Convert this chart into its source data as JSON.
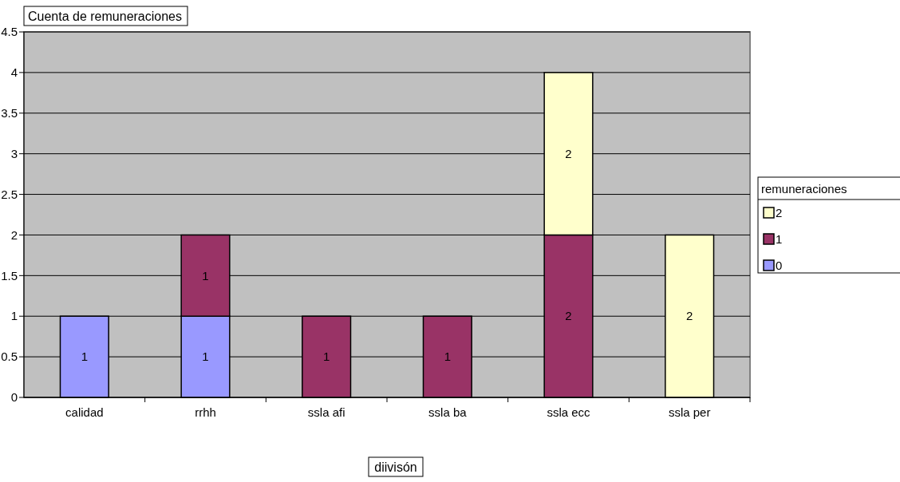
{
  "chart_data": {
    "type": "bar",
    "title": "Cuenta de remuneraciones",
    "xlabel": "diivisón",
    "legend_title": "remuneraciones",
    "categories": [
      "calidad",
      "rrhh",
      "ssla afi",
      "ssla ba",
      "ssla ecc",
      "ssla per"
    ],
    "stacked": true,
    "series": [
      {
        "name": "0",
        "color": "#9999ff",
        "values": [
          1,
          1,
          null,
          null,
          null,
          null
        ]
      },
      {
        "name": "1",
        "color": "#993366",
        "values": [
          null,
          1,
          1,
          1,
          2,
          null
        ]
      },
      {
        "name": "2",
        "color": "#ffffcc",
        "values": [
          null,
          null,
          null,
          null,
          2,
          2
        ]
      }
    ],
    "ylim": [
      0,
      4.5
    ],
    "yticks": [
      0,
      0.5,
      1,
      1.5,
      2,
      2.5,
      3,
      3.5,
      4,
      4.5
    ],
    "grid": "y",
    "legend": "right",
    "data_labels": true
  }
}
